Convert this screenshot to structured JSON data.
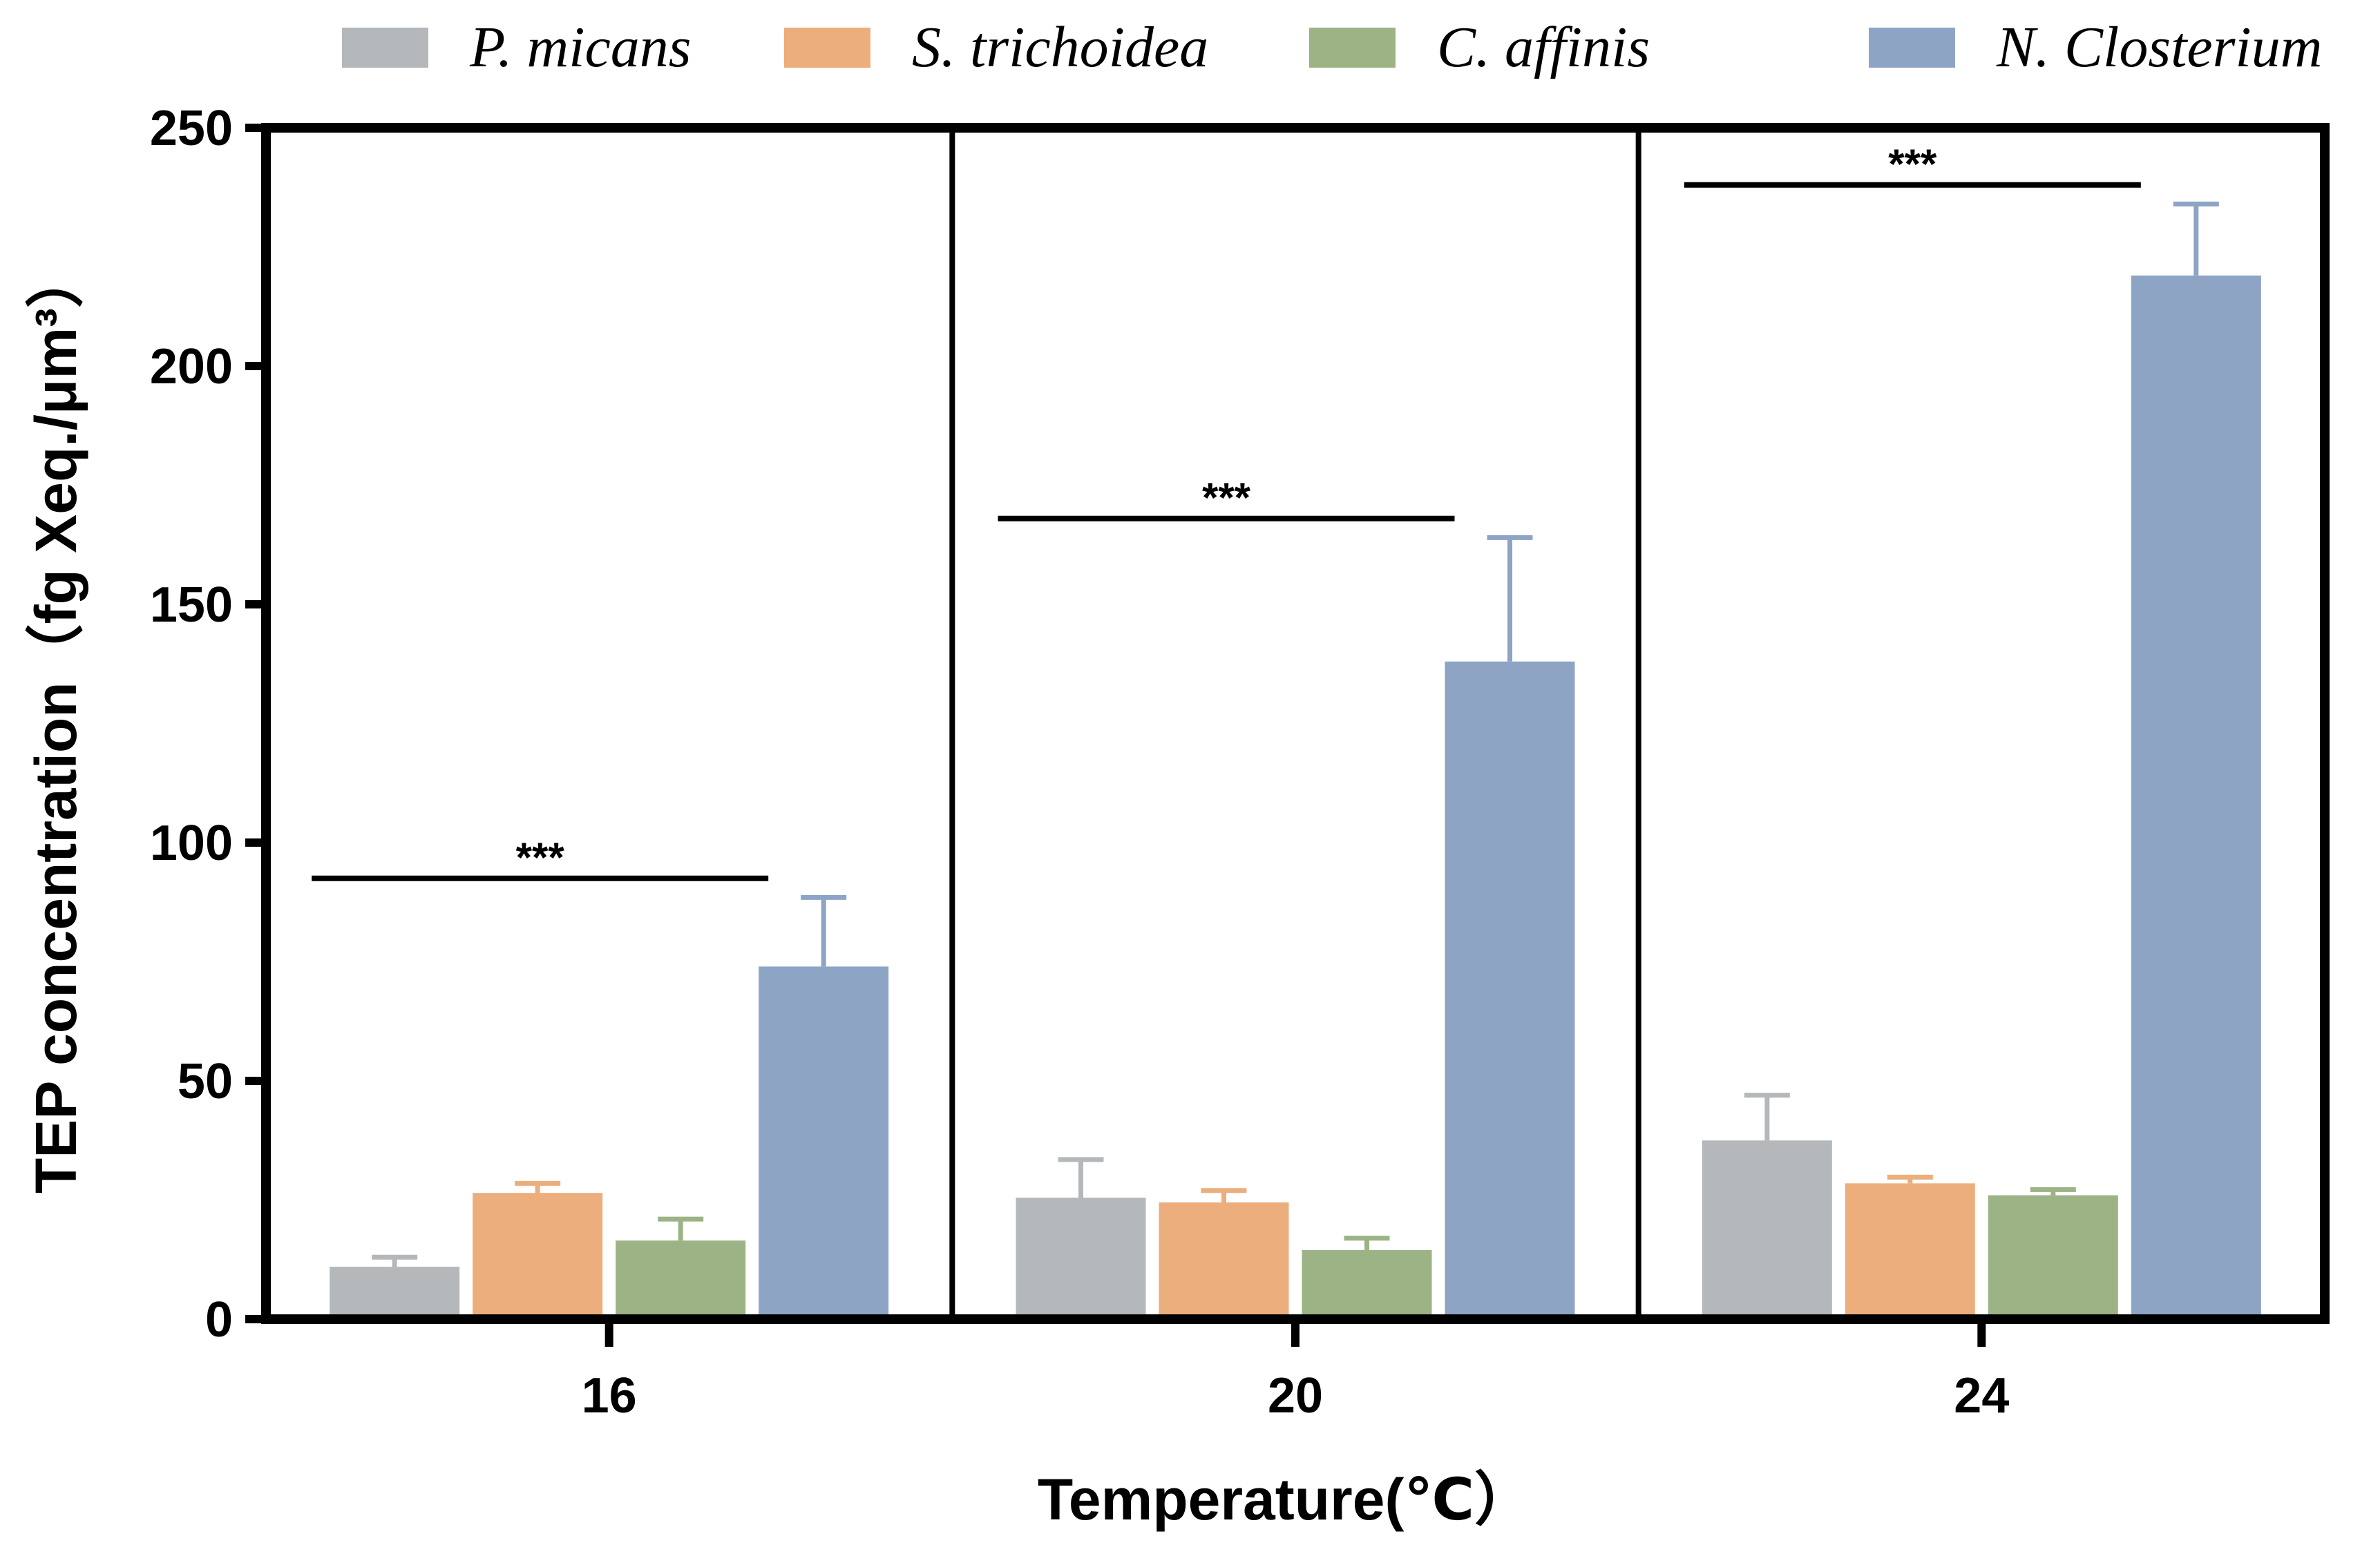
{
  "chart_data": {
    "type": "bar",
    "title": "",
    "xlabel": "Temperature(℃）",
    "ylabel": "TEP concentration（fg Xeq./μm³）",
    "ylim": [
      0,
      250
    ],
    "yticks": [
      "0",
      "50",
      "100",
      "150",
      "200",
      "250"
    ],
    "categories": [
      "16",
      "20",
      "24"
    ],
    "legend_position": "top",
    "series": [
      {
        "name": "P. micans",
        "color": "#b4b8bb",
        "values": [
          11,
          25.5,
          37.5
        ],
        "errors": [
          2,
          8,
          9.5
        ]
      },
      {
        "name": "S. trichoidea",
        "color": "#ecae7c",
        "values": [
          26.5,
          24.5,
          28.5
        ],
        "errors": [
          2,
          2.5,
          1.3
        ]
      },
      {
        "name": "C. affinis",
        "color": "#9cb386",
        "values": [
          16.5,
          14.5,
          26
        ],
        "errors": [
          4.5,
          2.5,
          1.2
        ]
      },
      {
        "name": "N. Closterium",
        "color": "#8ea4c5",
        "values": [
          74,
          138,
          219
        ],
        "errors": [
          14.5,
          26,
          15
        ]
      }
    ],
    "significance": [
      {
        "category": "16",
        "label": "***",
        "y": 92.5
      },
      {
        "category": "20",
        "label": "***",
        "y": 168
      },
      {
        "category": "24",
        "label": "***",
        "y": 238
      }
    ]
  }
}
